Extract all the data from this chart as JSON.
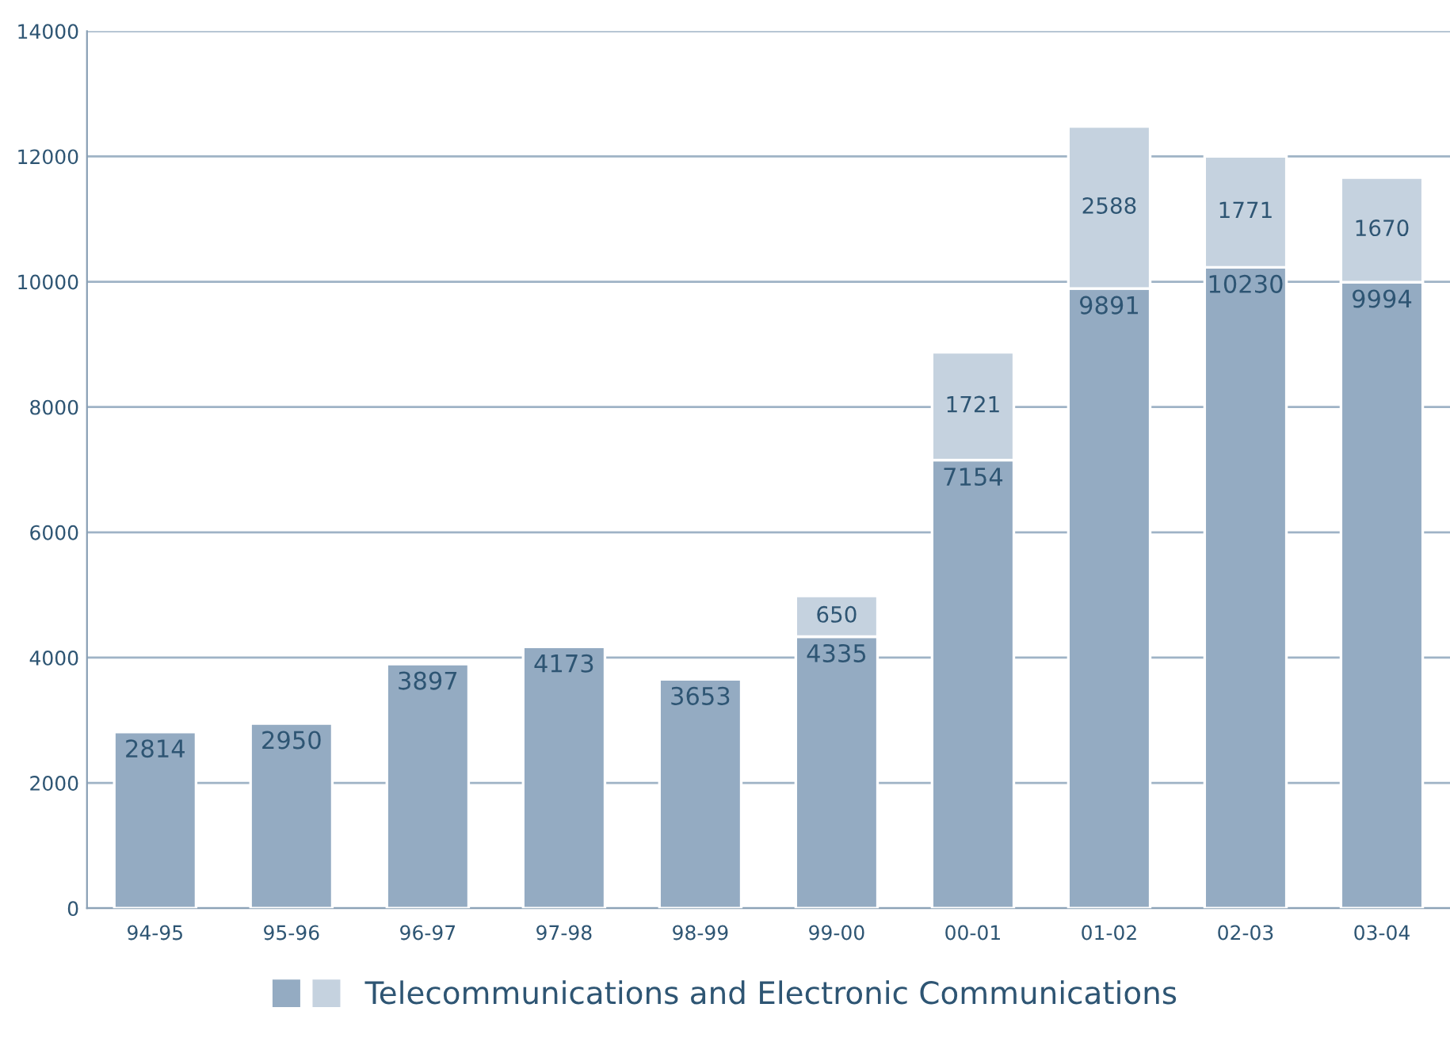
{
  "chart_data": {
    "type": "bar",
    "stacked": true,
    "categories": [
      "94-95",
      "95-96",
      "96-97",
      "97-98",
      "98-99",
      "99-00",
      "00-01",
      "01-02",
      "02-03",
      "03-04"
    ],
    "series": [
      {
        "name": "Telecommunications and Electronic Communications",
        "color": "#94abc2",
        "values": [
          2814,
          2950,
          3897,
          4173,
          3653,
          4335,
          7154,
          9891,
          10230,
          9994
        ]
      },
      {
        "color": "#c5d2df",
        "values": [
          null,
          null,
          null,
          null,
          null,
          650,
          1721,
          2588,
          1771,
          1670
        ]
      }
    ],
    "ylim": [
      0,
      14000
    ],
    "yticks": [
      0,
      2000,
      4000,
      6000,
      8000,
      10000,
      12000,
      14000
    ],
    "grid": "y",
    "data_labels": true,
    "legend": "bottom"
  }
}
